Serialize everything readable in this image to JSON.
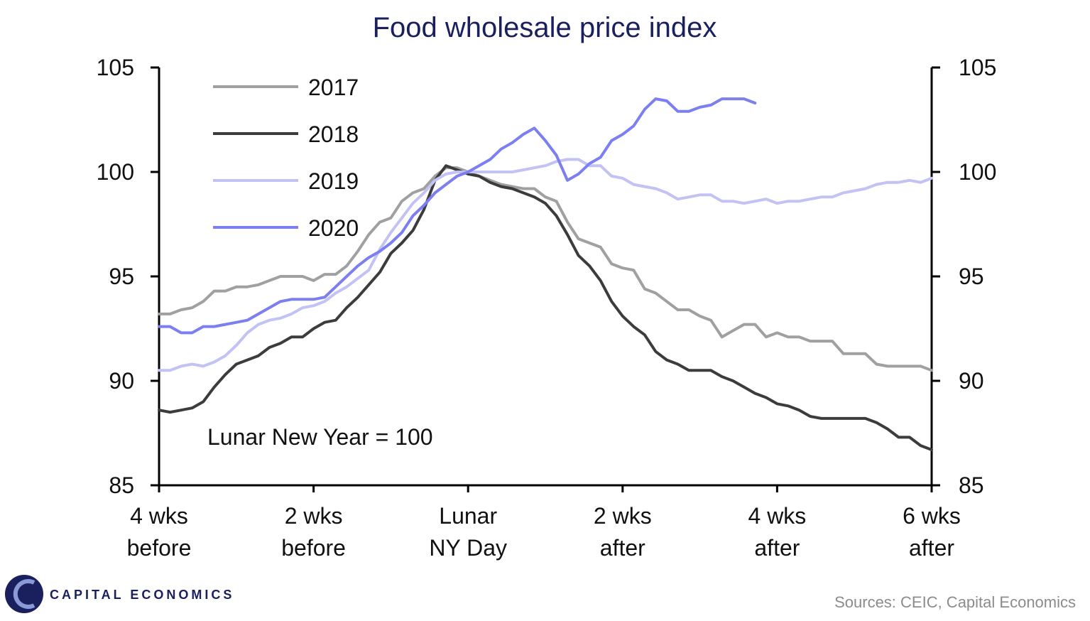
{
  "chart_data": {
    "type": "line",
    "title": "Food wholesale price index",
    "note": "Lunar  New Year = 100",
    "source": "Sources: CEIC, Capital Economics",
    "brand": "CAPITAL ECONOMICS",
    "ylim": [
      85,
      105
    ],
    "y_ticks": [
      "105",
      "100",
      "95",
      "90",
      "85"
    ],
    "xlim": [
      -28,
      42
    ],
    "x_ticks": [
      {
        "x": -28,
        "line1": "4 wks",
        "line2": "before"
      },
      {
        "x": -14,
        "line1": "2 wks",
        "line2": "before"
      },
      {
        "x": 0,
        "line1": "Lunar",
        "line2": "NY Day"
      },
      {
        "x": 14,
        "line1": "2 wks",
        "line2": "after"
      },
      {
        "x": 28,
        "line1": "4 wks",
        "line2": "after"
      },
      {
        "x": 42,
        "line1": "6 wks",
        "line2": "after"
      }
    ],
    "legend_position": "top-left",
    "series": [
      {
        "name": "2017",
        "color": "#a0a0a0",
        "x": [
          -28,
          -27,
          -26,
          -25,
          -24,
          -23,
          -22,
          -21,
          -20,
          -19,
          -18,
          -17,
          -16,
          -15,
          -14,
          -13,
          -12,
          -11,
          -10,
          -9,
          -8,
          -7,
          -6,
          -5,
          -4,
          -3,
          -2,
          -1,
          0,
          1,
          2,
          3,
          4,
          5,
          6,
          7,
          8,
          9,
          10,
          11,
          12,
          13,
          14,
          15,
          16,
          17,
          18,
          19,
          20,
          21,
          22,
          23,
          24,
          25,
          26,
          27,
          28,
          29,
          30,
          31,
          32,
          33,
          34,
          35,
          36,
          37,
          38,
          39,
          40,
          41,
          42
        ],
        "values": [
          93.2,
          93.2,
          93.4,
          93.5,
          93.8,
          94.3,
          94.3,
          94.5,
          94.5,
          94.6,
          94.8,
          95.0,
          95.0,
          95.0,
          94.8,
          95.1,
          95.1,
          95.5,
          96.2,
          97.0,
          97.6,
          97.8,
          98.6,
          99.0,
          99.2,
          99.8,
          100.2,
          100.2,
          100.0,
          99.8,
          99.6,
          99.4,
          99.3,
          99.2,
          99.2,
          98.8,
          98.6,
          97.6,
          96.8,
          96.6,
          96.4,
          95.6,
          95.4,
          95.3,
          94.4,
          94.2,
          93.8,
          93.4,
          93.4,
          93.1,
          92.9,
          92.1,
          92.4,
          92.7,
          92.7,
          92.1,
          92.3,
          92.1,
          92.1,
          91.9,
          91.9,
          91.9,
          91.3,
          91.3,
          91.3,
          90.8,
          90.7,
          90.7,
          90.7,
          90.7,
          90.5
        ]
      },
      {
        "name": "2018",
        "color": "#3c3c3c",
        "x": [
          -28,
          -27,
          -26,
          -25,
          -24,
          -23,
          -22,
          -21,
          -20,
          -19,
          -18,
          -17,
          -16,
          -15,
          -14,
          -13,
          -12,
          -11,
          -10,
          -9,
          -8,
          -7,
          -6,
          -5,
          -4,
          -3,
          -2,
          -1,
          0,
          1,
          2,
          3,
          4,
          5,
          6,
          7,
          8,
          9,
          10,
          11,
          12,
          13,
          14,
          15,
          16,
          17,
          18,
          19,
          20,
          21,
          22,
          23,
          24,
          25,
          26,
          27,
          28,
          29,
          30,
          31,
          32,
          33,
          34,
          35,
          36,
          37,
          38,
          39,
          40,
          41,
          42
        ],
        "values": [
          88.6,
          88.5,
          88.6,
          88.7,
          89.0,
          89.7,
          90.3,
          90.8,
          91.0,
          91.2,
          91.6,
          91.8,
          92.1,
          92.1,
          92.5,
          92.8,
          92.9,
          93.5,
          94.0,
          94.6,
          95.2,
          96.1,
          96.6,
          97.2,
          98.2,
          99.6,
          100.3,
          100.1,
          99.9,
          99.8,
          99.5,
          99.3,
          99.2,
          99.0,
          98.8,
          98.5,
          97.9,
          97.0,
          96.0,
          95.5,
          94.8,
          93.8,
          93.1,
          92.6,
          92.2,
          91.4,
          91.0,
          90.8,
          90.5,
          90.5,
          90.5,
          90.2,
          90.0,
          89.7,
          89.4,
          89.2,
          88.9,
          88.8,
          88.6,
          88.3,
          88.2,
          88.2,
          88.2,
          88.2,
          88.2,
          88.0,
          87.7,
          87.3,
          87.3,
          86.9,
          86.7
        ]
      },
      {
        "name": "2019",
        "color": "#c2c2f5",
        "x": [
          -28,
          -27,
          -26,
          -25,
          -24,
          -23,
          -22,
          -21,
          -20,
          -19,
          -18,
          -17,
          -16,
          -15,
          -14,
          -13,
          -12,
          -11,
          -10,
          -9,
          -8,
          -7,
          -6,
          -5,
          -4,
          -3,
          -2,
          -1,
          0,
          1,
          2,
          3,
          4,
          5,
          6,
          7,
          8,
          9,
          10,
          11,
          12,
          13,
          14,
          15,
          16,
          17,
          18,
          19,
          20,
          21,
          22,
          23,
          24,
          25,
          26,
          27,
          28,
          29,
          30,
          31,
          32,
          33,
          34,
          35,
          36,
          37,
          38,
          39,
          40,
          41,
          42
        ],
        "values": [
          90.5,
          90.5,
          90.7,
          90.8,
          90.7,
          90.9,
          91.2,
          91.7,
          92.3,
          92.7,
          92.9,
          93.0,
          93.2,
          93.5,
          93.6,
          93.8,
          94.2,
          94.5,
          94.9,
          95.3,
          96.3,
          97.1,
          97.8,
          98.5,
          99.0,
          99.6,
          99.9,
          100.0,
          100.0,
          100.0,
          100.0,
          100.0,
          100.0,
          100.1,
          100.2,
          100.3,
          100.5,
          100.6,
          100.6,
          100.3,
          100.3,
          99.8,
          99.7,
          99.4,
          99.3,
          99.2,
          99.0,
          98.7,
          98.8,
          98.9,
          98.9,
          98.6,
          98.6,
          98.5,
          98.6,
          98.7,
          98.5,
          98.6,
          98.6,
          98.7,
          98.8,
          98.8,
          99.0,
          99.1,
          99.2,
          99.4,
          99.5,
          99.5,
          99.6,
          99.5,
          99.7
        ]
      },
      {
        "name": "2020",
        "color": "#7b7ff0",
        "x": [
          -28,
          -27,
          -26,
          -25,
          -24,
          -23,
          -22,
          -21,
          -20,
          -19,
          -18,
          -17,
          -16,
          -15,
          -14,
          -13,
          -12,
          -11,
          -10,
          -9,
          -8,
          -7,
          -6,
          -5,
          -4,
          -3,
          -2,
          -1,
          0,
          1,
          2,
          3,
          4,
          5,
          6,
          7,
          8,
          9,
          10,
          11,
          12,
          13,
          14,
          15,
          16,
          17,
          18,
          19,
          20,
          21,
          22,
          23,
          24,
          25,
          26
        ],
        "values": [
          92.6,
          92.6,
          92.3,
          92.3,
          92.6,
          92.6,
          92.7,
          92.8,
          92.9,
          93.2,
          93.5,
          93.8,
          93.9,
          93.9,
          93.9,
          94.0,
          94.5,
          95.0,
          95.5,
          95.9,
          96.2,
          96.6,
          97.1,
          97.9,
          98.4,
          99.0,
          99.4,
          99.8,
          100.0,
          100.3,
          100.6,
          101.1,
          101.4,
          101.8,
          102.1,
          101.5,
          100.8,
          99.6,
          99.9,
          100.4,
          100.7,
          101.5,
          101.8,
          102.2,
          103.0,
          103.5,
          103.4,
          102.9,
          102.9,
          103.1,
          103.2,
          103.5,
          103.5,
          103.5,
          103.3
        ]
      }
    ]
  }
}
